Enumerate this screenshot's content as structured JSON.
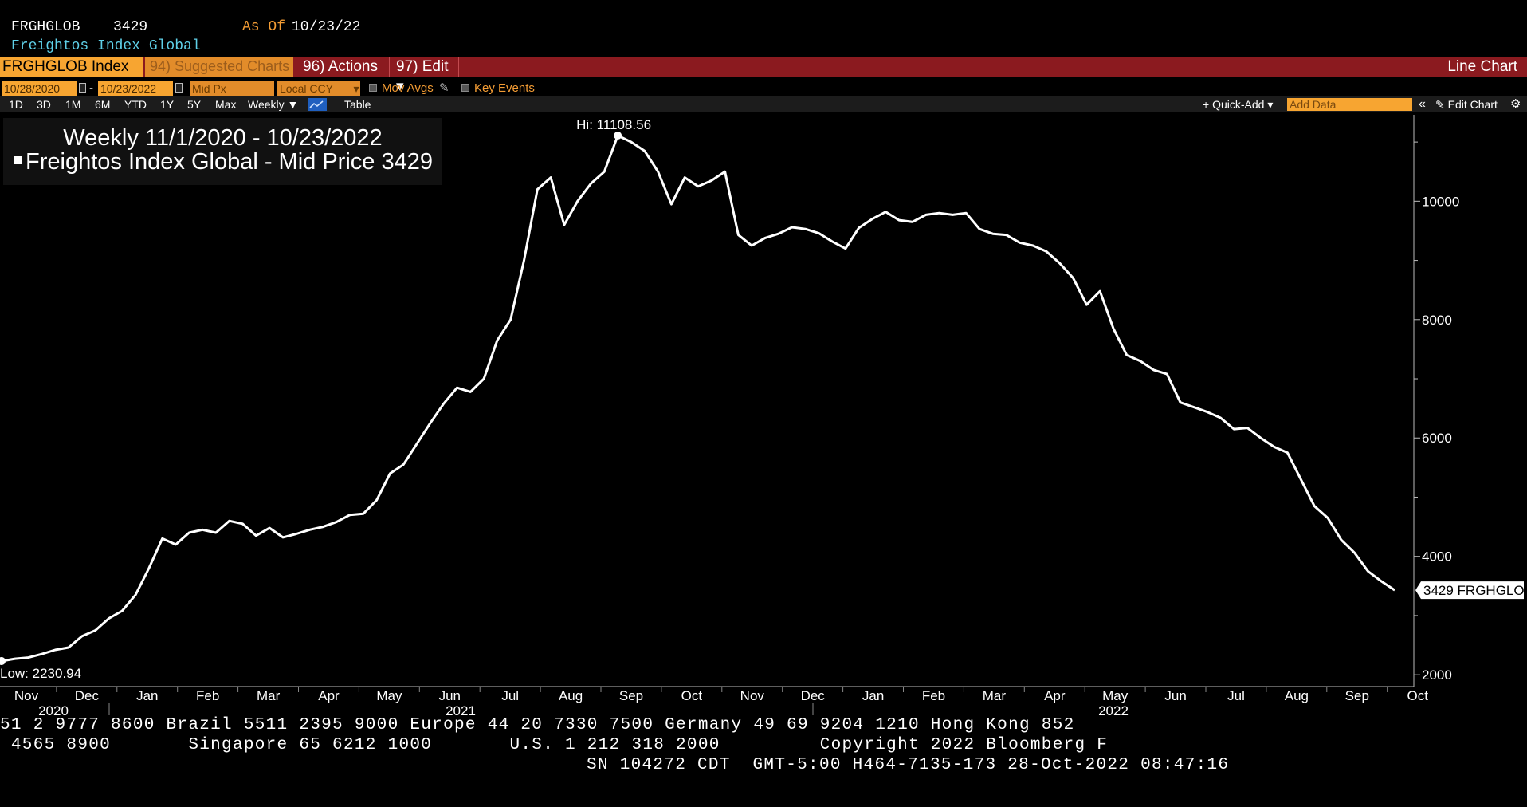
{
  "header": {
    "ticker": "FRGHGLOB",
    "price": "3429",
    "as_of_label": "As Of",
    "as_of_date": "10/23/22",
    "name": "Freightos Index Global"
  },
  "redbar": {
    "security": "FRGHGLOB Index",
    "suggested": "94) Suggested Charts",
    "actions": "96) Actions ▾",
    "edit": "97) Edit ▾",
    "chart_type": "Line Chart"
  },
  "controls": {
    "start_date": "10/28/2020",
    "dash": "-",
    "end_date": "10/23/2022",
    "field": "Mid Px",
    "currency": "Local CCY",
    "mov_avgs": "Mov Avgs",
    "key_events": "Key Events"
  },
  "toolbar": {
    "ranges": [
      "1D",
      "3D",
      "1M",
      "6M",
      "YTD",
      "1Y",
      "5Y",
      "Max"
    ],
    "period": "Weekly ▼",
    "table": "Table",
    "quick_add": "+ Quick-Add ▾",
    "add_data_placeholder": "Add Data",
    "collapse": "«",
    "edit_chart": "✎ Edit Chart",
    "settings_icon": "gear-icon",
    "chart_icon": "line-chart-icon"
  },
  "legend": {
    "title": "Weekly 11/1/2020 - 10/23/2022",
    "series": "Freightos Index Global - Mid Price",
    "last": "3429"
  },
  "chart_data": {
    "type": "line",
    "title": "Weekly 11/1/2020 - 10/23/2022",
    "series": [
      {
        "name": "Freightos Index Global - Mid Price",
        "color": "#ffffff",
        "x_week_index_note": "weekly points Nov 2020 - Oct 2022",
        "values": [
          2231,
          2270,
          2290,
          2350,
          2420,
          2460,
          2650,
          2750,
          2950,
          3080,
          3350,
          3800,
          4300,
          4200,
          4400,
          4450,
          4400,
          4600,
          4550,
          4350,
          4480,
          4320,
          4380,
          4450,
          4500,
          4580,
          4700,
          4720,
          4950,
          5400,
          5550,
          5900,
          6250,
          6580,
          6850,
          6780,
          7000,
          7650,
          8000,
          9000,
          10200,
          10400,
          9600,
          10000,
          10300,
          10500,
          11109,
          11000,
          10850,
          10500,
          9950,
          10400,
          10250,
          10350,
          10500,
          9430,
          9250,
          9380,
          9450,
          9560,
          9530,
          9460,
          9320,
          9200,
          9550,
          9700,
          9820,
          9680,
          9650,
          9770,
          9800,
          9770,
          9800,
          9530,
          9450,
          9430,
          9300,
          9250,
          9150,
          8950,
          8700,
          8250,
          8480,
          7850,
          7400,
          7300,
          7150,
          7080,
          6600,
          6520,
          6440,
          6340,
          6150,
          6170,
          6000,
          5850,
          5750,
          5300,
          4850,
          4650,
          4280,
          4060,
          3750,
          3580,
          3429
        ]
      }
    ],
    "ylim": [
      1800,
      11500
    ],
    "yticks": [
      2000,
      4000,
      6000,
      8000,
      10000
    ],
    "ytick_labels": [
      "2000",
      "4000",
      "6000",
      "8000",
      "10000"
    ],
    "xtick_labels": [
      "Nov",
      "Dec",
      "Jan",
      "Feb",
      "Mar",
      "Apr",
      "May",
      "Jun",
      "Jul",
      "Aug",
      "Sep",
      "Oct",
      "Nov",
      "Dec",
      "Jan",
      "Feb",
      "Mar",
      "Apr",
      "May",
      "Jun",
      "Jul",
      "Aug",
      "Sep",
      "Oct"
    ],
    "year_labels": [
      "2020",
      "2021",
      "2022"
    ],
    "annotations": {
      "high": "Hi: 11108.56",
      "low": "Low: 2230.94",
      "last_tag": "3429 FRGHGLOB"
    },
    "grid": false,
    "legend_position": "top-left"
  },
  "ticker_lines": [
    "51 2 9777 8600 Brazil 5511 2395 9000 Europe 44 20 7330 7500 Germany 49 69 9204 1210 Hong Kong 852",
    " 4565 8900       Singapore 65 6212 1000       U.S. 1 212 318 2000         Copyright 2022 Bloomberg F",
    "SN 104272 CDT  GMT-5:00 H464-7135-173 28-Oct-2022 08:47:16"
  ]
}
